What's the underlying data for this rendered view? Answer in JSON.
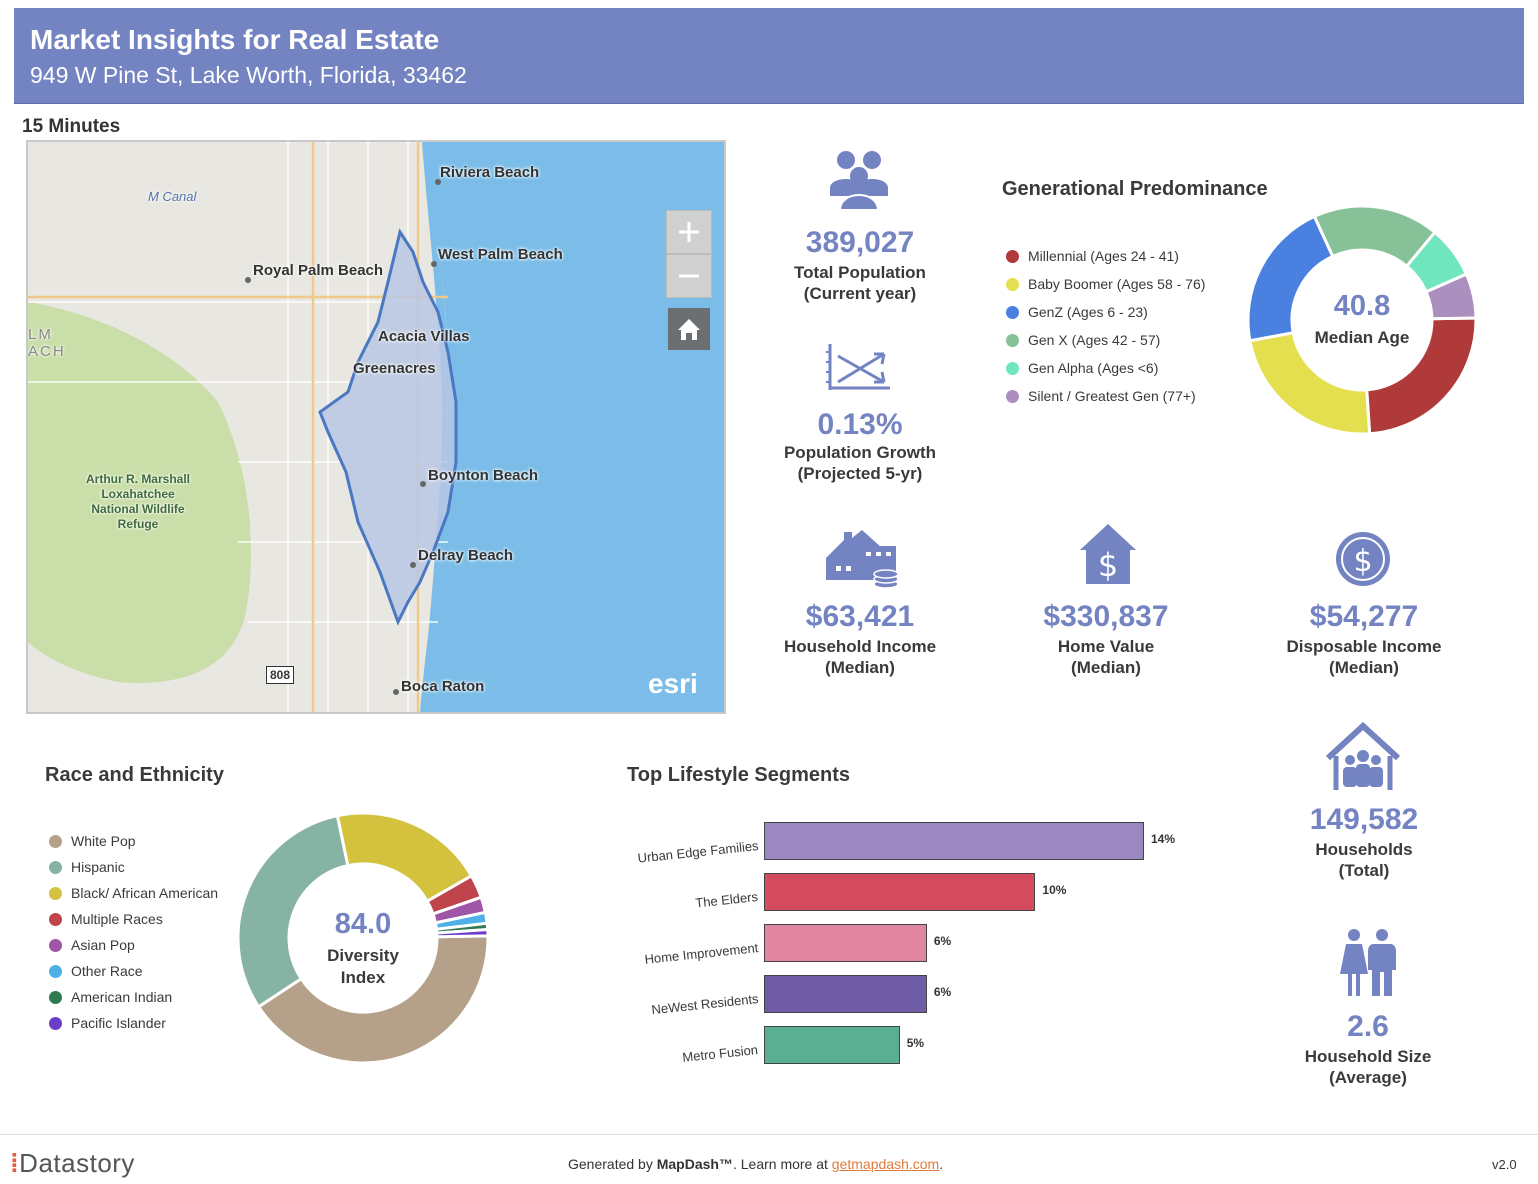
{
  "header": {
    "title": "Market Insights for Real Estate",
    "address": "949 W Pine St, Lake Worth, Florida, 33462"
  },
  "drive_time_label": "15 Minutes",
  "map": {
    "places": [
      "Riviera Beach",
      "West Palm Beach",
      "Royal Palm Beach",
      "Acacia Villas",
      "Greenacres",
      "Boynton Beach",
      "Delray Beach",
      "Boca Raton"
    ],
    "canal_label": "M Canal",
    "refuge_label": "Arthur R. Marshall Loxahatchee National Wildlife Refuge",
    "edge_label": "LM\nACH",
    "road_shield": "808",
    "attribution": "esri",
    "zoom_in_icon": "plus-icon",
    "zoom_out_icon": "minus-icon",
    "home_icon": "home-icon",
    "colors": {
      "water": "#7bbde8",
      "land": "#e9e7e1",
      "park": "#c9dea8",
      "boundary": "#4a78c2"
    }
  },
  "metrics": {
    "total_population": {
      "value": "389,027",
      "label1": "Total Population",
      "label2": "(Current year)",
      "icon": "people-icon"
    },
    "population_growth": {
      "value": "0.13%",
      "label1": "Population Growth",
      "label2": "(Projected 5-yr)",
      "icon": "growth-chart-icon"
    },
    "household_income": {
      "value": "$63,421",
      "label1": "Household Income",
      "label2": "(Median)",
      "icon": "house-coins-icon"
    },
    "home_value": {
      "value": "$330,837",
      "label1": "Home Value",
      "label2": "(Median)",
      "icon": "house-dollar-icon"
    },
    "disposable_income": {
      "value": "$54,277",
      "label1": "Disposable Income",
      "label2": "(Median)",
      "icon": "dollar-circle-icon"
    },
    "households": {
      "value": "149,582",
      "label1": "Households",
      "label2": "(Total)",
      "icon": "family-house-icon"
    },
    "household_size": {
      "value": "2.6",
      "label1": "Household Size",
      "label2": "(Average)",
      "icon": "couple-icon"
    }
  },
  "generational": {
    "title": "Generational Predominance",
    "center_value": "40.8",
    "center_label": "Median Age",
    "legend": [
      {
        "label": "Millennial (Ages 24 - 41)",
        "color": "#b03a3a"
      },
      {
        "label": "Baby Boomer (Ages 58 - 76)",
        "color": "#e3df4f"
      },
      {
        "label": "GenZ (Ages 6 - 23)",
        "color": "#4a80e0"
      },
      {
        "label": "Gen X (Ages 42 - 57)",
        "color": "#86c197"
      },
      {
        "label": "Gen Alpha (Ages <6)",
        "color": "#6fe6be"
      },
      {
        "label": "Silent / Greatest Gen (77+)",
        "color": "#ab8fbf"
      }
    ]
  },
  "race": {
    "title": "Race and Ethnicity",
    "center_value": "84.0",
    "center_label1": "Diversity",
    "center_label2": "Index",
    "legend": [
      {
        "label": "White Pop",
        "color": "#b5a18a"
      },
      {
        "label": "Hispanic",
        "color": "#86b3a3"
      },
      {
        "label": "Black/ African American",
        "color": "#d4c13e"
      },
      {
        "label": "Multiple Races",
        "color": "#c0444c"
      },
      {
        "label": "Asian Pop",
        "color": "#a056a8"
      },
      {
        "label": "Other Race",
        "color": "#4fb0e8"
      },
      {
        "label": "American Indian",
        "color": "#2f7a4e"
      },
      {
        "label": "Pacific Islander",
        "color": "#6b3ec8"
      }
    ]
  },
  "chart_data": [
    {
      "type": "pie",
      "title": "Generational Predominance",
      "categories": [
        "Millennial (Ages 24 - 41)",
        "Baby Boomer (Ages 58 - 76)",
        "GenZ (Ages 6 - 23)",
        "Gen X (Ages 42 - 57)",
        "Gen Alpha (Ages <6)",
        "Silent / Greatest Gen (77+)"
      ],
      "values": [
        23,
        22,
        20,
        17,
        7,
        6
      ]
    },
    {
      "type": "pie",
      "title": "Race and Ethnicity",
      "categories": [
        "White Pop",
        "Hispanic",
        "Black/ African American",
        "Multiple Races",
        "Asian Pop",
        "Other Race",
        "American Indian",
        "Pacific Islander"
      ],
      "values": [
        41,
        31,
        20,
        3,
        2,
        1.4,
        0.8,
        0.8
      ]
    },
    {
      "type": "bar",
      "title": "Top Lifestyle Segments",
      "categories": [
        "Urban Edge Families",
        "The Elders",
        "Home Improvement",
        "NeWest Residents",
        "Metro Fusion"
      ],
      "values": [
        14,
        10,
        6,
        6,
        5
      ],
      "value_labels": [
        "14%",
        "10%",
        "6%",
        "6%",
        "5%"
      ],
      "colors": [
        "#9b88c0",
        "#d44a5e",
        "#e086a0",
        "#6e5da6",
        "#5aae92"
      ]
    }
  ],
  "footer": {
    "brand": "Datastory",
    "generated_prefix": "Generated by ",
    "generated_brand": "MapDash™",
    "learn_more": ".  Learn more at ",
    "link": "getmapdash.com",
    "suffix": ".",
    "version": "v2.0"
  }
}
